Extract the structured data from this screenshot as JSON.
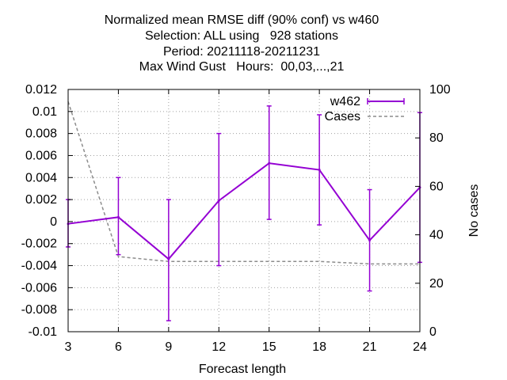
{
  "chart_data": {
    "type": "line",
    "title": [
      "Normalized mean RMSE diff (90% conf) vs w460",
      "Selection: ALL using   928 stations",
      "Period: 20211118-20211231",
      "Max Wind Gust   Hours:  00,03,...,21"
    ],
    "xlabel": "Forecast length",
    "ylabel": "",
    "y2label": "No cases",
    "x": [
      3,
      6,
      9,
      12,
      15,
      18,
      21,
      24
    ],
    "xticks": [
      "3",
      "6",
      "9",
      "12",
      "15",
      "18",
      "21",
      "24"
    ],
    "xlim": [
      3,
      24
    ],
    "ylim": [
      -0.01,
      0.012
    ],
    "yticks": [
      "-0.01",
      "-0.008",
      "-0.006",
      "-0.004",
      "-0.002",
      "0",
      "0.002",
      "0.004",
      "0.006",
      "0.008",
      "0.01",
      "0.012"
    ],
    "y2lim": [
      0,
      100
    ],
    "y2ticks": [
      "0",
      "20",
      "40",
      "60",
      "80",
      "100"
    ],
    "grid": true,
    "legend_position": "top-right",
    "series": [
      {
        "name": "w462",
        "axis": "y1",
        "color": "#9400d3",
        "style": "errorbars",
        "values": [
          -0.0002,
          0.0004,
          -0.0034,
          0.0019,
          0.0053,
          0.0047,
          -0.0017,
          0.0031
        ],
        "lower": [
          -0.0023,
          -0.003,
          -0.009,
          -0.004,
          0.0002,
          -0.0003,
          -0.0063,
          -0.0037
        ],
        "upper": [
          0.002,
          0.004,
          0.002,
          0.008,
          0.0105,
          0.0097,
          0.0029,
          0.0099
        ]
      },
      {
        "name": "Cases",
        "axis": "y2",
        "color": "#8c8c8c",
        "style": "dashed",
        "values": [
          95,
          31,
          29,
          29,
          29,
          29,
          28,
          28
        ]
      }
    ]
  }
}
